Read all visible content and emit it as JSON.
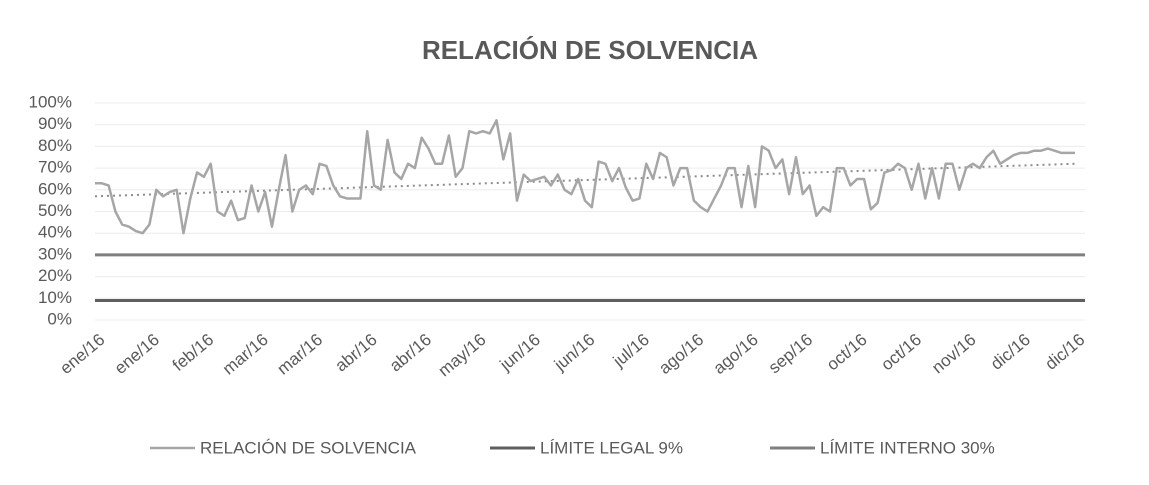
{
  "chart_data": {
    "type": "line",
    "title": "RELACIÓN DE SOLVENCIA",
    "categories": [
      "ene/16",
      null,
      null,
      null,
      null,
      null,
      null,
      null,
      "ene/16",
      null,
      null,
      null,
      null,
      null,
      null,
      null,
      "feb/16",
      null,
      null,
      null,
      null,
      null,
      null,
      null,
      "mar/16",
      null,
      null,
      null,
      null,
      null,
      null,
      null,
      "mar/16",
      null,
      null,
      null,
      null,
      null,
      null,
      null,
      "abr/16",
      null,
      null,
      null,
      null,
      null,
      null,
      null,
      "abr/16",
      null,
      null,
      null,
      null,
      null,
      null,
      null,
      "may/16",
      null,
      null,
      null,
      null,
      null,
      null,
      null,
      "jun/16",
      null,
      null,
      null,
      null,
      null,
      null,
      null,
      "jun/16",
      null,
      null,
      null,
      null,
      null,
      null,
      null,
      "jul/16",
      null,
      null,
      null,
      null,
      null,
      null,
      null,
      "ago/16",
      null,
      null,
      null,
      null,
      null,
      null,
      null,
      "ago/16",
      null,
      null,
      null,
      null,
      null,
      null,
      null,
      "sep/16",
      null,
      null,
      null,
      null,
      null,
      null,
      null,
      "oct/16",
      null,
      null,
      null,
      null,
      null,
      null,
      null,
      "oct/16",
      null,
      null,
      null,
      null,
      null,
      null,
      null,
      "nov/16",
      null,
      null,
      null,
      null,
      null,
      null,
      null,
      "dic/16",
      null,
      null,
      null,
      null,
      null,
      null,
      null,
      "dic/16"
    ],
    "series": [
      {
        "name": "RELACIÓN DE SOLVENCIA",
        "color": "#a6a6a6",
        "values": [
          63,
          63,
          62,
          50,
          44,
          43,
          41,
          40,
          44,
          60,
          57,
          59,
          60,
          40,
          56,
          68,
          66,
          72,
          50,
          48,
          55,
          46,
          47,
          62,
          50,
          59,
          43,
          60,
          76,
          50,
          60,
          62,
          58,
          72,
          71,
          62,
          57,
          56,
          56,
          56,
          87,
          62,
          60,
          83,
          68,
          65,
          72,
          70,
          84,
          79,
          72,
          72,
          85,
          66,
          70,
          87,
          86,
          87,
          86,
          92,
          74,
          86,
          55,
          67,
          64,
          65,
          66,
          62,
          67,
          60,
          58,
          65,
          55,
          52,
          73,
          72,
          64,
          70,
          61,
          55,
          56,
          72,
          65,
          77,
          75,
          62,
          70,
          70,
          55,
          52,
          50,
          56,
          62,
          70,
          70,
          52,
          71,
          52,
          80,
          78,
          70,
          74,
          58,
          75,
          58,
          62,
          48,
          52,
          50,
          70,
          70,
          62,
          65,
          65,
          51,
          54,
          68,
          69,
          72,
          70,
          60,
          72,
          56,
          70,
          56,
          72,
          72,
          60,
          70,
          72,
          70,
          75,
          78,
          72,
          74,
          76,
          77,
          77,
          78,
          78,
          79,
          78,
          77,
          77,
          77
        ]
      }
    ],
    "reference_lines": [
      {
        "name": "LÍMITE LEGAL 9%",
        "value": 9,
        "color": "#5f5f5f"
      },
      {
        "name": "LÍMITE INTERNO 30%",
        "value": 30,
        "color": "#7f7f7f"
      }
    ],
    "trend": [
      57,
      72
    ],
    "trend_color": "#8c8c8c",
    "ylim": [
      0,
      100
    ],
    "yticks": [
      {
        "value": 0,
        "label": "0%"
      },
      {
        "value": 10,
        "label": "10%"
      },
      {
        "value": 20,
        "label": "20%"
      },
      {
        "value": 30,
        "label": "30%"
      },
      {
        "value": 40,
        "label": "40%"
      },
      {
        "value": 50,
        "label": "50%"
      },
      {
        "value": 60,
        "label": "60%"
      },
      {
        "value": 70,
        "label": "70%"
      },
      {
        "value": 80,
        "label": "80%"
      },
      {
        "value": 90,
        "label": "90%"
      },
      {
        "value": 100,
        "label": "100%"
      }
    ],
    "grid": true
  }
}
